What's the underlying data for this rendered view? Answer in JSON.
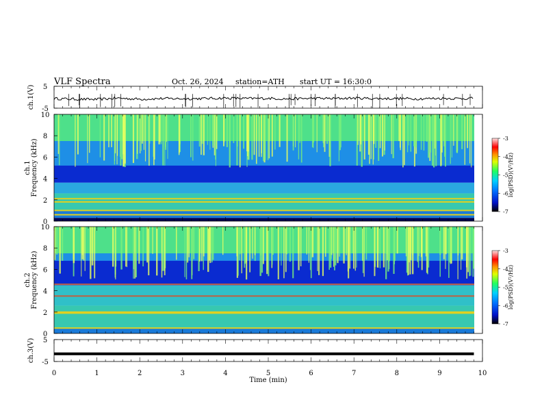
{
  "header": {
    "title": "VLF  Spectra",
    "date": "Oct. 26, 2024",
    "station": "station=ATH",
    "start": "start  UT  =   16:30:0"
  },
  "chart_data": [
    {
      "type": "line",
      "ylabel": "ch.1(V)",
      "ylim": [
        -5,
        5
      ],
      "yticks": [
        "5",
        "-5"
      ],
      "xlim": [
        0,
        10
      ],
      "series": [
        {
          "x": [
            0,
            0.5,
            1,
            1.5,
            2,
            2.5,
            3,
            3.5,
            4,
            4.5,
            5,
            5.5,
            6,
            6.5,
            7,
            7.5,
            8,
            8.5,
            9,
            9.5,
            9.8
          ],
          "values": [
            -0.6,
            -0.9,
            -1.0,
            -0.4,
            -0.9,
            -0.6,
            -0.7,
            -0.6,
            -0.4,
            -0.6,
            -0.5,
            -0.8,
            -0.5,
            -0.6,
            -0.4,
            -0.6,
            -0.6,
            -0.7,
            -0.5,
            -0.6,
            -0.5
          ]
        }
      ]
    },
    {
      "type": "heatmap",
      "ylabel": "ch.1\nFrequency (kHz)",
      "ylim": [
        0,
        10
      ],
      "yticks": [
        "0",
        "2",
        "4",
        "6",
        "8",
        "10"
      ],
      "xlim": [
        0,
        10
      ],
      "colorbar": {
        "label": "log(PSD)(V²/Hz)",
        "range": [
          -7,
          -3
        ],
        "ticks": [
          "-3",
          "-4",
          "-5",
          "-6",
          "-7"
        ]
      },
      "bands": [
        {
          "from": 7.5,
          "to": 10,
          "color": "#4ee08a"
        },
        {
          "from": 4.2,
          "to": 7.5,
          "color": "#1e8fe6"
        },
        {
          "from": 3.6,
          "to": 5.2,
          "color": "#0a2bd0"
        },
        {
          "from": 2.6,
          "to": 3.6,
          "color": "#2aa8e0"
        },
        {
          "from": 1.0,
          "to": 2.6,
          "color": "#37c8b0"
        },
        {
          "from": 0.3,
          "to": 1.0,
          "color": "#1a7ad8"
        },
        {
          "from": 0,
          "to": 0.3,
          "color": "#000050"
        }
      ],
      "lines_khz": [
        2.1,
        1.8,
        1.0,
        0.6
      ]
    },
    {
      "type": "heatmap",
      "ylabel": "ch.2\nFrequency (kHz)",
      "ylim": [
        0,
        10
      ],
      "yticks": [
        "0",
        "2",
        "4",
        "6",
        "8",
        "10"
      ],
      "xlim": [
        0,
        10
      ],
      "colorbar": {
        "label": "log(PSD)(V²/Hz)",
        "range": [
          -7,
          -3
        ],
        "ticks": [
          "-3",
          "-4",
          "-5",
          "-6",
          "-7"
        ]
      },
      "bands": [
        {
          "from": 7.5,
          "to": 10,
          "color": "#4ee08a"
        },
        {
          "from": 4.8,
          "to": 7.5,
          "color": "#1e8fe6"
        },
        {
          "from": 4.5,
          "to": 6.8,
          "color": "#0a2bd0"
        },
        {
          "from": 2.6,
          "to": 4.5,
          "color": "#30c0c8"
        },
        {
          "from": 0.5,
          "to": 2.6,
          "color": "#37c8b0"
        },
        {
          "from": 0,
          "to": 0.5,
          "color": "#1a7ad8"
        }
      ],
      "lines_khz": [
        4.6,
        3.5,
        2.0,
        1.9,
        0.5
      ]
    },
    {
      "type": "line",
      "ylabel": "ch.3(V)",
      "ylim": [
        -5,
        5
      ],
      "yticks": [
        "5",
        "-5"
      ],
      "xlim": [
        0,
        10
      ],
      "xlabel": "Time (min)",
      "xticks": [
        "0",
        "1",
        "2",
        "3",
        "4",
        "5",
        "6",
        "7",
        "8",
        "9",
        "10"
      ],
      "series": [
        {
          "x": [
            0,
            9.8
          ],
          "values": [
            -1.5,
            -1.5
          ]
        }
      ]
    }
  ]
}
